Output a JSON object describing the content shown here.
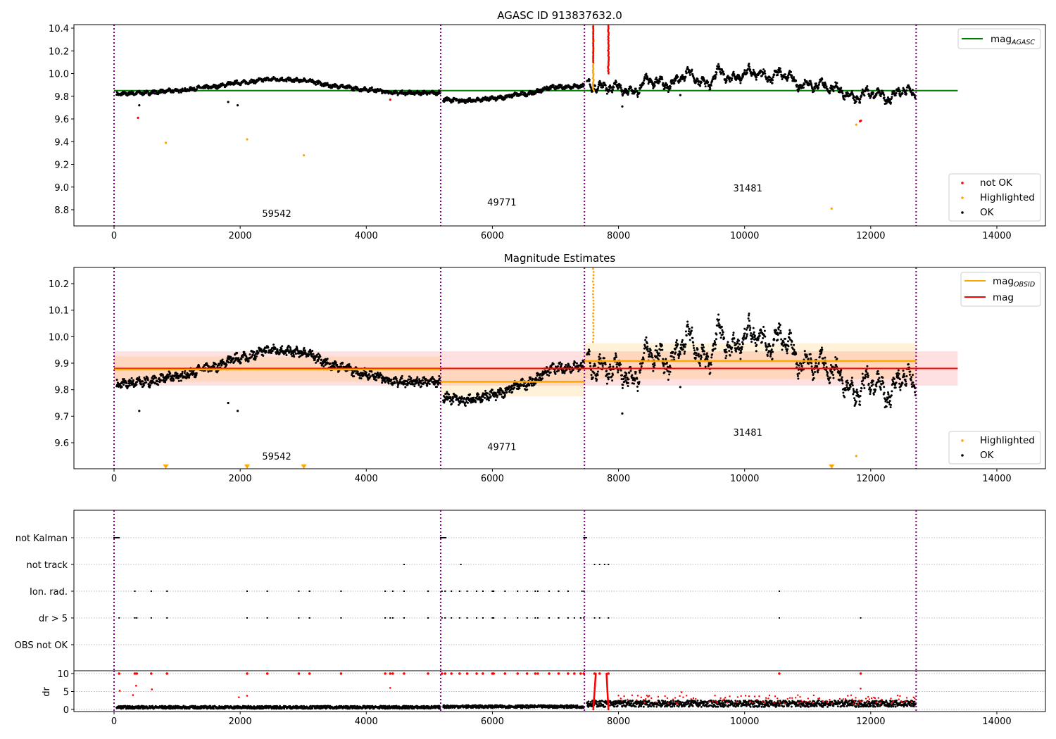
{
  "chart_data": [
    {
      "type": "scatter",
      "title": "AGASC ID 913837632.0",
      "xlim": [
        -640,
        14780
      ],
      "ylim": [
        8.657,
        10.431
      ],
      "xticks": [
        0,
        2000,
        4000,
        6000,
        8000,
        10000,
        12000,
        14000
      ],
      "yticks": [
        8.8,
        9.0,
        9.2,
        9.4,
        9.6,
        9.8,
        10.0,
        10.2,
        10.4
      ],
      "mag_agasc": 9.85,
      "mag_agasc_xrange": [
        0,
        13380
      ],
      "legend_upper": [
        "mag_AGASC"
      ],
      "legend_lower": [
        "not OK",
        "Highlighted",
        "OK"
      ],
      "legend_position": [
        "top-right",
        "bottom-right"
      ],
      "obs_boundaries": [
        0,
        5180,
        7460,
        12720
      ],
      "observations": [
        {
          "obsid": "59542",
          "range": [
            0,
            5180
          ],
          "curve_x": [
            50,
            500,
            1000,
            1500,
            2000,
            2500,
            3000,
            3500,
            4000,
            4500,
            5150
          ],
          "curve_y": [
            9.82,
            9.83,
            9.85,
            9.88,
            9.92,
            9.95,
            9.94,
            9.89,
            9.86,
            9.83,
            9.83
          ]
        },
        {
          "obsid": "49771",
          "range": [
            5180,
            7460
          ],
          "curve_x": [
            5200,
            5600,
            6000,
            6500,
            7000,
            7450
          ],
          "curve_y": [
            9.77,
            9.76,
            9.78,
            9.82,
            9.88,
            9.89
          ]
        },
        {
          "obsid": "31481",
          "range": [
            7460,
            12720
          ],
          "curve_x": [
            7500,
            7700,
            8000,
            8200,
            8500,
            8800,
            9100,
            9400,
            9600,
            9800,
            10100,
            10400,
            10600,
            10900,
            11200,
            11500,
            11700,
            12000,
            12300,
            12500,
            12700
          ],
          "curve_y": [
            9.9,
            9.88,
            9.88,
            9.83,
            9.94,
            9.9,
            10.0,
            9.9,
            10.02,
            9.95,
            10.02,
            9.97,
            10.0,
            9.9,
            9.9,
            9.86,
            9.78,
            9.83,
            9.78,
            9.86,
            9.82
          ]
        }
      ],
      "not_ok_points": [
        [
          380,
          9.61
        ],
        [
          4380,
          9.77
        ],
        [
          11830,
          9.58
        ],
        [
          11845,
          9.585
        ]
      ],
      "highlighted_points": [
        [
          820,
          9.39
        ],
        [
          2110,
          9.42
        ],
        [
          3010,
          9.28
        ],
        [
          11380,
          8.81
        ],
        [
          11770,
          9.55
        ]
      ],
      "ok_outliers": [
        [
          400,
          9.72
        ],
        [
          1810,
          9.75
        ],
        [
          1960,
          9.72
        ],
        [
          8060,
          9.71
        ],
        [
          8980,
          9.81
        ]
      ],
      "streaks": [
        {
          "x": 7600,
          "from": 9.85,
          "to": 10.43,
          "color": "orange"
        },
        {
          "x": 7840,
          "from": 10.0,
          "to": 10.43,
          "color": "red"
        }
      ]
    },
    {
      "type": "scatter",
      "title": "Magnitude Estimates",
      "xlim": [
        -640,
        14780
      ],
      "ylim": [
        9.502,
        10.261
      ],
      "xticks": [
        0,
        2000,
        4000,
        6000,
        8000,
        10000,
        12000,
        14000
      ],
      "yticks": [
        9.6,
        9.7,
        9.8,
        9.9,
        10.0,
        10.1,
        10.2
      ],
      "mag": 9.88,
      "mag_band": [
        9.815,
        9.945
      ],
      "mag_xrange": [
        0,
        13380
      ],
      "mag_obsid": [
        {
          "range": [
            0,
            5180
          ],
          "value": 9.876,
          "band": [
            9.83,
            9.925
          ]
        },
        {
          "range": [
            5180,
            7460
          ],
          "value": 9.83,
          "band": [
            9.775,
            9.885
          ]
        },
        {
          "range": [
            7460,
            12720
          ],
          "value": 9.908,
          "band": [
            9.84,
            9.975
          ]
        }
      ],
      "legend_upper": [
        "mag_OBSID",
        "mag"
      ],
      "legend_lower": [
        "Highlighted",
        "OK"
      ],
      "legend_position": [
        "top-right",
        "bottom-right"
      ],
      "obs_label_y": [
        9.55,
        9.585,
        9.64
      ],
      "offscale_highlighted_x": [
        820,
        2110,
        3010,
        11380
      ],
      "highlighted_points": [
        [
          11770,
          9.55
        ]
      ]
    },
    {
      "type": "scatter",
      "title": "",
      "categories": [
        "not Kalman",
        "not track",
        "Ion. rad.",
        "dr > 5",
        "OBS not OK"
      ],
      "flag_points": {
        "not Kalman": [
          0,
          20,
          40,
          60,
          80,
          5180,
          5200,
          5220,
          5240,
          5260,
          7450,
          7470,
          7490
        ],
        "not track": [
          4600,
          5500,
          7620,
          7700,
          7780,
          7840
        ],
        "Ion. rad.": [
          330,
          590,
          840,
          2110,
          2430,
          2930,
          3100,
          3600,
          4300,
          4420,
          4600,
          4980,
          5200,
          5250,
          5350,
          5480,
          5600,
          5750,
          5850,
          6000,
          6020,
          6200,
          6400,
          6550,
          6680,
          6720,
          6900,
          7050,
          7200,
          7420,
          7450,
          10550
        ],
        "dr > 5": [
          80,
          330,
          360,
          590,
          840,
          2110,
          2430,
          2930,
          3100,
          3600,
          4300,
          4380,
          4420,
          4600,
          4980,
          5200,
          5250,
          5350,
          5480,
          5600,
          5750,
          5850,
          6000,
          6020,
          6200,
          6400,
          6550,
          6680,
          6720,
          6900,
          7050,
          7200,
          7300,
          7400,
          7450,
          7620,
          7700,
          7840,
          10550,
          11840
        ],
        "OBS not OK": []
      }
    },
    {
      "type": "scatter",
      "ylabel": "dr",
      "ylim": [
        -0.6,
        10.3
      ],
      "yticks": [
        0,
        5,
        10
      ],
      "xticks": [
        0,
        2000,
        4000,
        6000,
        8000,
        10000,
        12000,
        14000
      ],
      "baseline_dr": [
        0.6,
        0.8,
        1.6
      ],
      "red_points": [
        [
          90,
          5.2
        ],
        [
          300,
          4
        ],
        [
          350,
          6.6
        ],
        [
          600,
          5.6
        ],
        [
          1980,
          3.4
        ],
        [
          2110,
          3.8
        ],
        [
          4380,
          6
        ],
        [
          11840,
          5.8
        ],
        [
          9000,
          4.8
        ]
      ]
    }
  ]
}
